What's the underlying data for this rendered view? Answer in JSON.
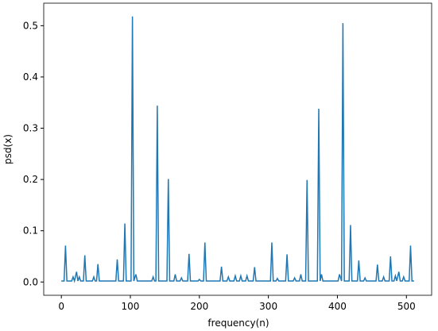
{
  "chart_data": {
    "type": "line",
    "xlabel": "frequency(n)",
    "ylabel": "psd(x)",
    "xlim": [
      -25.55,
      536.55
    ],
    "ylim": [
      -0.0259,
      0.5439
    ],
    "xticks": [
      0,
      100,
      200,
      300,
      400,
      500
    ],
    "yticks": [
      {
        "value": 0,
        "label": "0.0"
      },
      0.1,
      0.2,
      0.3,
      0.4,
      0.5
    ],
    "series": [
      {
        "color": "#1f77b4",
        "x": [
          0,
          4,
          6,
          8,
          15,
          17,
          19,
          22,
          24,
          26,
          28,
          32,
          34,
          36,
          45,
          47,
          49,
          51,
          53,
          55,
          79,
          81,
          83,
          90,
          92,
          94,
          101,
          103,
          105,
          108,
          110,
          131,
          133,
          135,
          137,
          139,
          141,
          153,
          155,
          157,
          163,
          165,
          167,
          172,
          174,
          176,
          183,
          185,
          187,
          198,
          200,
          202,
          206,
          208,
          210,
          230,
          232,
          234,
          240,
          242,
          244,
          250,
          252,
          254,
          258,
          260,
          262,
          267,
          269,
          271,
          278,
          280,
          282,
          303,
          305,
          307,
          311,
          313,
          315,
          325,
          327,
          329,
          336,
          338,
          340,
          345,
          347,
          349,
          354,
          356,
          358,
          371,
          373,
          375,
          377,
          379,
          401,
          403,
          406,
          408,
          410,
          417,
          419,
          421,
          429,
          431,
          433,
          438,
          440,
          442,
          456,
          458,
          460,
          465,
          467,
          469,
          475,
          477,
          479,
          482,
          484,
          486,
          489,
          491,
          494,
          496,
          498,
          504,
          506,
          508,
          511
        ],
        "values": [
          0.002,
          0.002,
          0.071,
          0.002,
          0.002,
          0.01,
          0.002,
          0.02,
          0.002,
          0.01,
          0.002,
          0.002,
          0.052,
          0.002,
          0.002,
          0.01,
          0.002,
          0.002,
          0.035,
          0.002,
          0.002,
          0.044,
          0.002,
          0.002,
          0.114,
          0.002,
          0.002,
          0.518,
          0.002,
          0.015,
          0.002,
          0.002,
          0.01,
          0.002,
          0.002,
          0.344,
          0.002,
          0.002,
          0.201,
          0.002,
          0.002,
          0.015,
          0.002,
          0.002,
          0.008,
          0.002,
          0.002,
          0.055,
          0.002,
          0.002,
          0.005,
          0.002,
          0.002,
          0.077,
          0.002,
          0.002,
          0.03,
          0.002,
          0.002,
          0.01,
          0.002,
          0.002,
          0.012,
          0.002,
          0.002,
          0.012,
          0.002,
          0.002,
          0.012,
          0.002,
          0.002,
          0.029,
          0.002,
          0.002,
          0.077,
          0.002,
          0.002,
          0.007,
          0.002,
          0.002,
          0.054,
          0.002,
          0.002,
          0.008,
          0.002,
          0.002,
          0.015,
          0.002,
          0.002,
          0.199,
          0.002,
          0.002,
          0.338,
          0.002,
          0.015,
          0.002,
          0.002,
          0.015,
          0.002,
          0.505,
          0.002,
          0.002,
          0.111,
          0.002,
          0.002,
          0.042,
          0.002,
          0.002,
          0.008,
          0.002,
          0.002,
          0.034,
          0.002,
          0.002,
          0.01,
          0.002,
          0.002,
          0.05,
          0.002,
          0.002,
          0.012,
          0.002,
          0.02,
          0.002,
          0.002,
          0.01,
          0.002,
          0.002,
          0.071,
          0.002,
          0.002
        ]
      }
    ]
  }
}
